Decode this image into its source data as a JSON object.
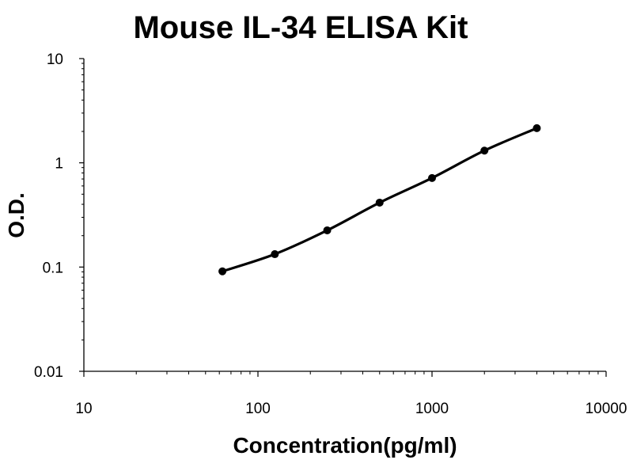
{
  "colors": {
    "background": "#ffffff",
    "axis": "#000000",
    "series": "#000000"
  },
  "chart_data": {
    "type": "line",
    "title": "Mouse IL-34 ELISA Kit",
    "xlabel": "Concentration(pg/ml)",
    "ylabel": "O.D.",
    "xscale": "log",
    "yscale": "log",
    "xlim": [
      10,
      10000
    ],
    "ylim": [
      0.01,
      10
    ],
    "x_tick_labels": [
      "10",
      "100",
      "1000",
      "10000"
    ],
    "y_tick_labels": [
      "0.01",
      "0.1",
      "1",
      "10"
    ],
    "grid": false,
    "legend": "none",
    "marker": "circle",
    "series": [
      {
        "x": [
          62.5,
          125,
          250,
          500,
          1000,
          2000,
          4000
        ],
        "y": [
          0.091,
          0.133,
          0.225,
          0.415,
          0.715,
          1.31,
          2.15
        ]
      }
    ]
  }
}
